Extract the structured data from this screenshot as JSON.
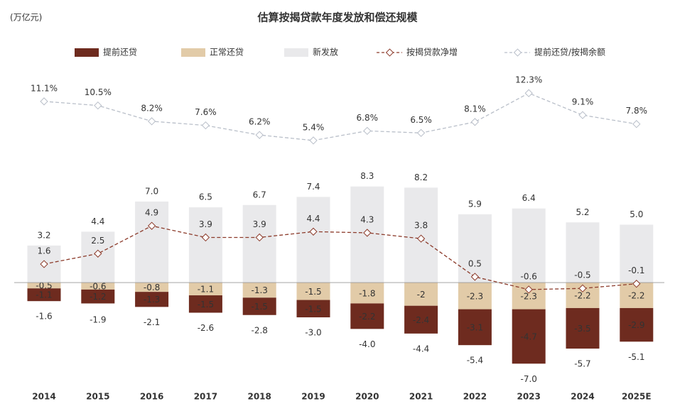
{
  "chart_data": {
    "type": "bar",
    "title": "估算按揭贷款年度发放和偿还规模",
    "unit_label": "(万亿元)",
    "categories": [
      "2014",
      "2015",
      "2016",
      "2017",
      "2018",
      "2019",
      "2020",
      "2021",
      "2022",
      "2023",
      "2024",
      "2025E"
    ],
    "ylim": [
      -8.7,
      19.5
    ],
    "y2lim": [
      -30,
      17.6
    ],
    "series": [
      {
        "name": "提前还贷",
        "type": "bar",
        "color": "#6e2b1f",
        "values": [
          -1.1,
          -1.2,
          -1.3,
          -1.5,
          -1.5,
          -1.5,
          -2.2,
          -2.4,
          -3.1,
          -4.7,
          -3.5,
          -2.9
        ]
      },
      {
        "name": "正常还贷",
        "type": "bar",
        "color": "#e2cba8",
        "values": [
          -0.5,
          -0.6,
          -0.8,
          -1.1,
          -1.3,
          -1.5,
          -1.8,
          -2.0,
          -2.3,
          -2.3,
          -2.2,
          -2.2
        ]
      },
      {
        "name": "新发放",
        "type": "bar",
        "color": "#e9e9eb",
        "values": [
          3.2,
          4.4,
          7.0,
          6.5,
          6.7,
          7.4,
          8.3,
          8.2,
          5.9,
          6.4,
          5.2,
          5.0
        ],
        "value_labels": [
          "3.2",
          "4.4",
          "7.0",
          "6.5",
          "6.7",
          "7.4",
          "8.3",
          "8.2",
          "5.9",
          "6.4",
          "5.2",
          "5.0"
        ]
      },
      {
        "name": "按揭贷款净增",
        "type": "line",
        "color": "#8c3b2b",
        "values": [
          1.6,
          2.5,
          4.9,
          3.9,
          3.9,
          4.4,
          4.3,
          3.8,
          0.5,
          -0.6,
          -0.5,
          -0.1
        ]
      },
      {
        "name": "提前还贷/按揭余额",
        "type": "line",
        "axis": "y2",
        "color": "#b9bfc9",
        "values": [
          11.1,
          10.5,
          8.2,
          7.6,
          6.2,
          5.4,
          6.8,
          6.5,
          8.1,
          12.3,
          9.1,
          7.8
        ],
        "value_labels": [
          "11.1%",
          "10.5%",
          "8.2%",
          "7.6%",
          "6.2%",
          "5.4%",
          "6.8%",
          "6.5%",
          "8.1%",
          "12.3%",
          "9.1%",
          "7.8%"
        ]
      }
    ],
    "totals": [
      -1.6,
      -1.9,
      -2.1,
      -2.6,
      -2.8,
      -3.0,
      -4.0,
      -4.4,
      -5.4,
      -7.0,
      -5.7,
      -5.1
    ],
    "total_labels": [
      "-1.6",
      "-1.9",
      "-2.1",
      "-2.6",
      "-2.8",
      "-3.0",
      "-4.0",
      "-4.4",
      "-5.4",
      "-7.0",
      "-5.7",
      "-5.1"
    ]
  }
}
